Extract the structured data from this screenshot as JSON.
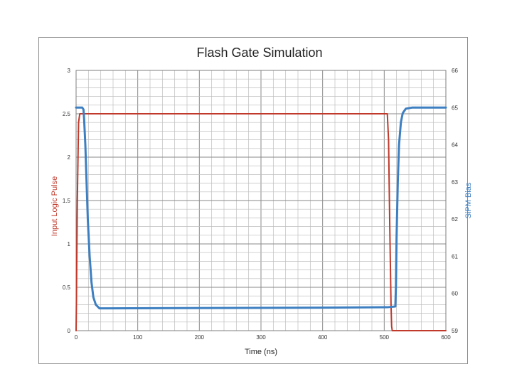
{
  "chart_data": {
    "type": "line",
    "title": "Flash Gate Simulation",
    "xlabel": "Time (ns)",
    "ylabel": "Input Logic Pulse",
    "ylabel_right": "SiPM Bias",
    "xlim": [
      0,
      600
    ],
    "ylim": [
      0,
      3
    ],
    "ylim_right": [
      59,
      66
    ],
    "x_ticks": [
      "0",
      "100",
      "200",
      "300",
      "400",
      "500",
      "600"
    ],
    "y_ticks": [
      "0",
      "0.5",
      "1",
      "1.5",
      "2",
      "2.5",
      "3"
    ],
    "y_ticks_right": [
      "59",
      "60",
      "61",
      "62",
      "63",
      "64",
      "65",
      "66"
    ],
    "grid": true,
    "colors": {
      "input": "#c0392b",
      "bias": "#3d7fc1"
    },
    "series": [
      {
        "axis": "left",
        "color": "#c0392b",
        "x": [
          0,
          0.5,
          2,
          4,
          6,
          505,
          507,
          509,
          511,
          512,
          513,
          600
        ],
        "y": [
          0,
          0.3,
          1.5,
          2.4,
          2.5,
          2.5,
          2.2,
          1.2,
          0.3,
          0.05,
          0,
          0
        ]
      },
      {
        "axis": "right",
        "color": "#3d7fc1",
        "x": [
          0,
          10,
          12,
          13,
          15,
          17,
          19,
          22,
          25,
          28,
          32,
          38,
          50,
          400,
          505,
          518,
          519,
          520,
          522,
          524,
          527,
          530,
          535,
          545,
          600
        ],
        "y": [
          65.0,
          65.0,
          64.95,
          64.7,
          64.0,
          63.0,
          62.0,
          61.0,
          60.3,
          59.9,
          59.7,
          59.6,
          59.6,
          59.62,
          59.63,
          59.65,
          60.2,
          61.5,
          63.0,
          64.0,
          64.6,
          64.85,
          64.97,
          65.0,
          65.0
        ]
      }
    ]
  }
}
